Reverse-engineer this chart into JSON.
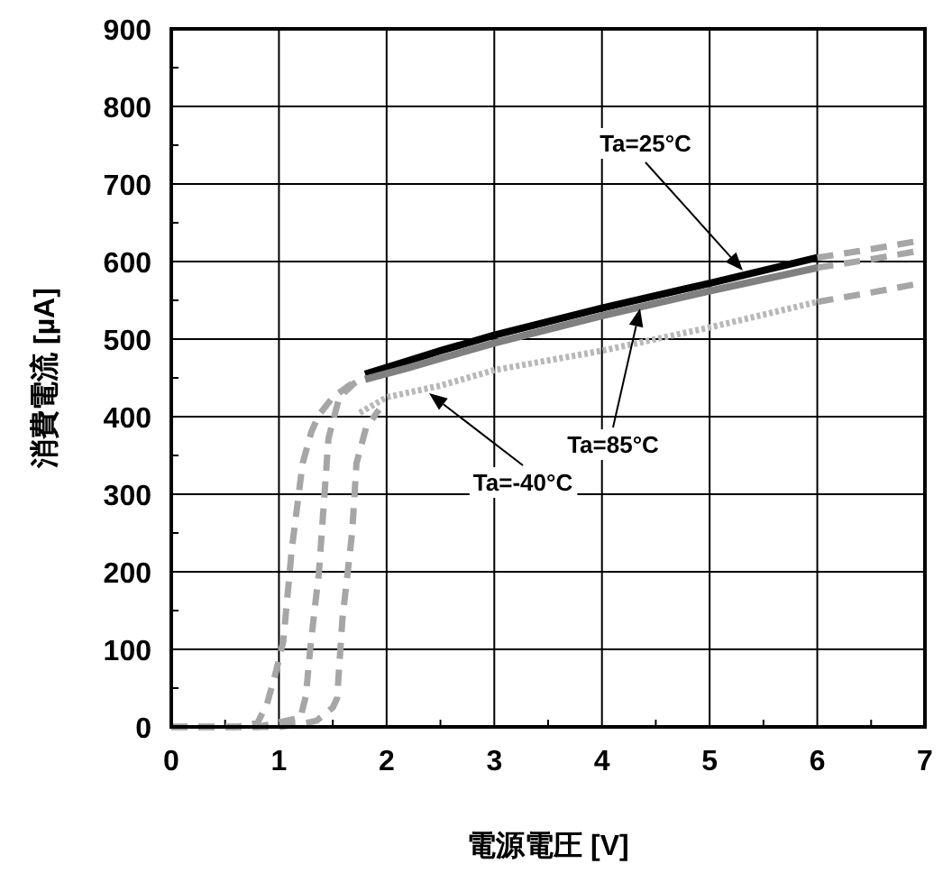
{
  "chart_data": {
    "type": "line",
    "xlabel": "電源電圧 [V]",
    "ylabel": "消費電流 [µA]",
    "xlim": [
      0,
      7
    ],
    "ylim": [
      0,
      900
    ],
    "xticks": [
      0,
      {
        "value": 0.5,
        "label": null
      },
      1,
      {
        "value": 1.5,
        "label": null
      },
      2,
      {
        "value": 2.5,
        "label": null
      },
      3,
      {
        "value": 3.5,
        "label": null
      },
      4,
      {
        "value": 4.5,
        "label": null
      },
      5,
      {
        "value": 5.5,
        "label": null
      },
      6,
      {
        "value": 6.5,
        "label": null
      },
      7
    ],
    "yticks": [
      0,
      {
        "value": 50,
        "label": null
      },
      100,
      {
        "value": 150,
        "label": null
      },
      200,
      {
        "value": 250,
        "label": null
      },
      300,
      {
        "value": 350,
        "label": null
      },
      400,
      {
        "value": 450,
        "label": null
      },
      500,
      {
        "value": 550,
        "label": null
      },
      600,
      {
        "value": 650,
        "label": null
      },
      700,
      {
        "value": 750,
        "label": null
      },
      800,
      {
        "value": 850,
        "label": null
      },
      900
    ],
    "grid": true,
    "series": [
      {
        "color": "#a6a6a6",
        "line_style": "dashed",
        "x": [
          0,
          0.6,
          0.8,
          0.89,
          0.97,
          1.04,
          1.12,
          1.22,
          1.3,
          1.37,
          1.5,
          1.65,
          1.76
        ],
        "values": [
          0,
          0,
          5,
          30,
          70,
          110,
          230,
          340,
          380,
          402,
          425,
          440,
          449
        ]
      },
      {
        "color": "#a6a6a6",
        "line_style": "dashed",
        "x": [
          0,
          0.8,
          0.97,
          1.2,
          1.25,
          1.29,
          1.33,
          1.37,
          1.46,
          1.56,
          1.7,
          1.8
        ],
        "values": [
          0,
          0,
          5,
          12,
          40,
          100,
          150,
          197,
          372,
          425,
          443,
          452
        ]
      },
      {
        "color": "#a6a6a6",
        "line_style": "dashed",
        "x": [
          0,
          1.0,
          1.18,
          1.35,
          1.5,
          1.54,
          1.59,
          1.68,
          1.72,
          1.81,
          1.93
        ],
        "values": [
          0,
          0,
          3,
          8,
          25,
          37,
          140,
          251,
          340,
          386,
          409
        ]
      },
      {
        "color": "#000000",
        "line_style": "solid",
        "x": [
          1.8,
          2.2,
          2.5,
          3,
          4,
          5,
          6
        ],
        "values": [
          455,
          472,
          485,
          505,
          540,
          572,
          605
        ]
      },
      {
        "color": "#808080",
        "line_style": "solid",
        "x": [
          1.8,
          2.2,
          2.5,
          3,
          4,
          5,
          6
        ],
        "values": [
          448,
          463,
          475,
          495,
          530,
          562,
          592
        ]
      },
      {
        "color": "#b8b8b8",
        "line_style": "dotted",
        "x": [
          1.75,
          2,
          2.5,
          3,
          4,
          5,
          6
        ],
        "values": [
          405,
          425,
          440,
          460,
          485,
          515,
          548
        ]
      },
      {
        "color": "#a6a6a6",
        "line_style": "dashed",
        "x": [
          6,
          6.5,
          7
        ],
        "values": [
          605,
          616,
          628
        ]
      },
      {
        "color": "#a6a6a6",
        "line_style": "dashed",
        "x": [
          6,
          6.5,
          7
        ],
        "values": [
          592,
          603,
          615
        ]
      },
      {
        "color": "#a6a6a6",
        "line_style": "dashed",
        "x": [
          6,
          6.5,
          7
        ],
        "values": [
          548,
          560,
          573
        ]
      }
    ],
    "annotations": [
      "Ta=25°C",
      "Ta=85°C",
      "Ta=-40°C"
    ]
  }
}
